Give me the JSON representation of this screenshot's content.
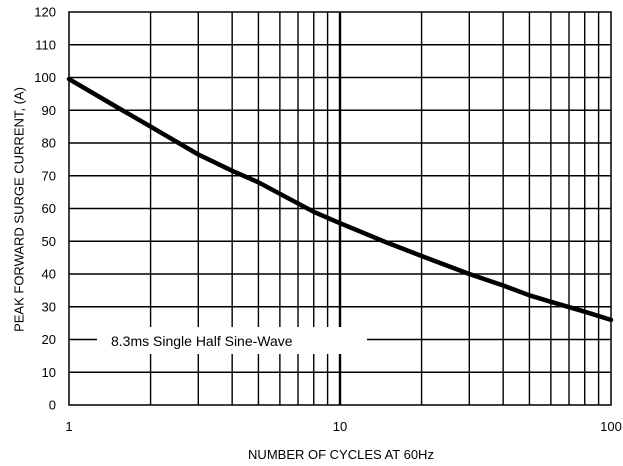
{
  "chart_data": {
    "type": "line",
    "title": "",
    "xlabel": "NUMBER OF CYCLES AT 60Hz",
    "ylabel": "PEAK FORWARD SURGE CURRENT, (A)",
    "x_scale": "log",
    "xlim": [
      1,
      100
    ],
    "ylim": [
      0,
      120
    ],
    "grid": true,
    "x_tick_labels": [
      "1",
      "10",
      "100"
    ],
    "y_tick_labels": [
      "0",
      "10",
      "20",
      "30",
      "40",
      "50",
      "60",
      "70",
      "80",
      "90",
      "100",
      "110",
      "120"
    ],
    "annotation": "8.3ms Single Half Sine-Wave",
    "series": [
      {
        "color": "#000000",
        "x": [
          1,
          1.5,
          2,
          3,
          4,
          5,
          6,
          8,
          10,
          15,
          20,
          30,
          40,
          50,
          60,
          80,
          100
        ],
        "y": [
          99.5,
          91,
          85,
          76.5,
          71.5,
          68,
          64.5,
          59,
          55.5,
          49.5,
          45.5,
          40,
          36.5,
          33.5,
          31.5,
          28.5,
          26
        ]
      }
    ]
  }
}
